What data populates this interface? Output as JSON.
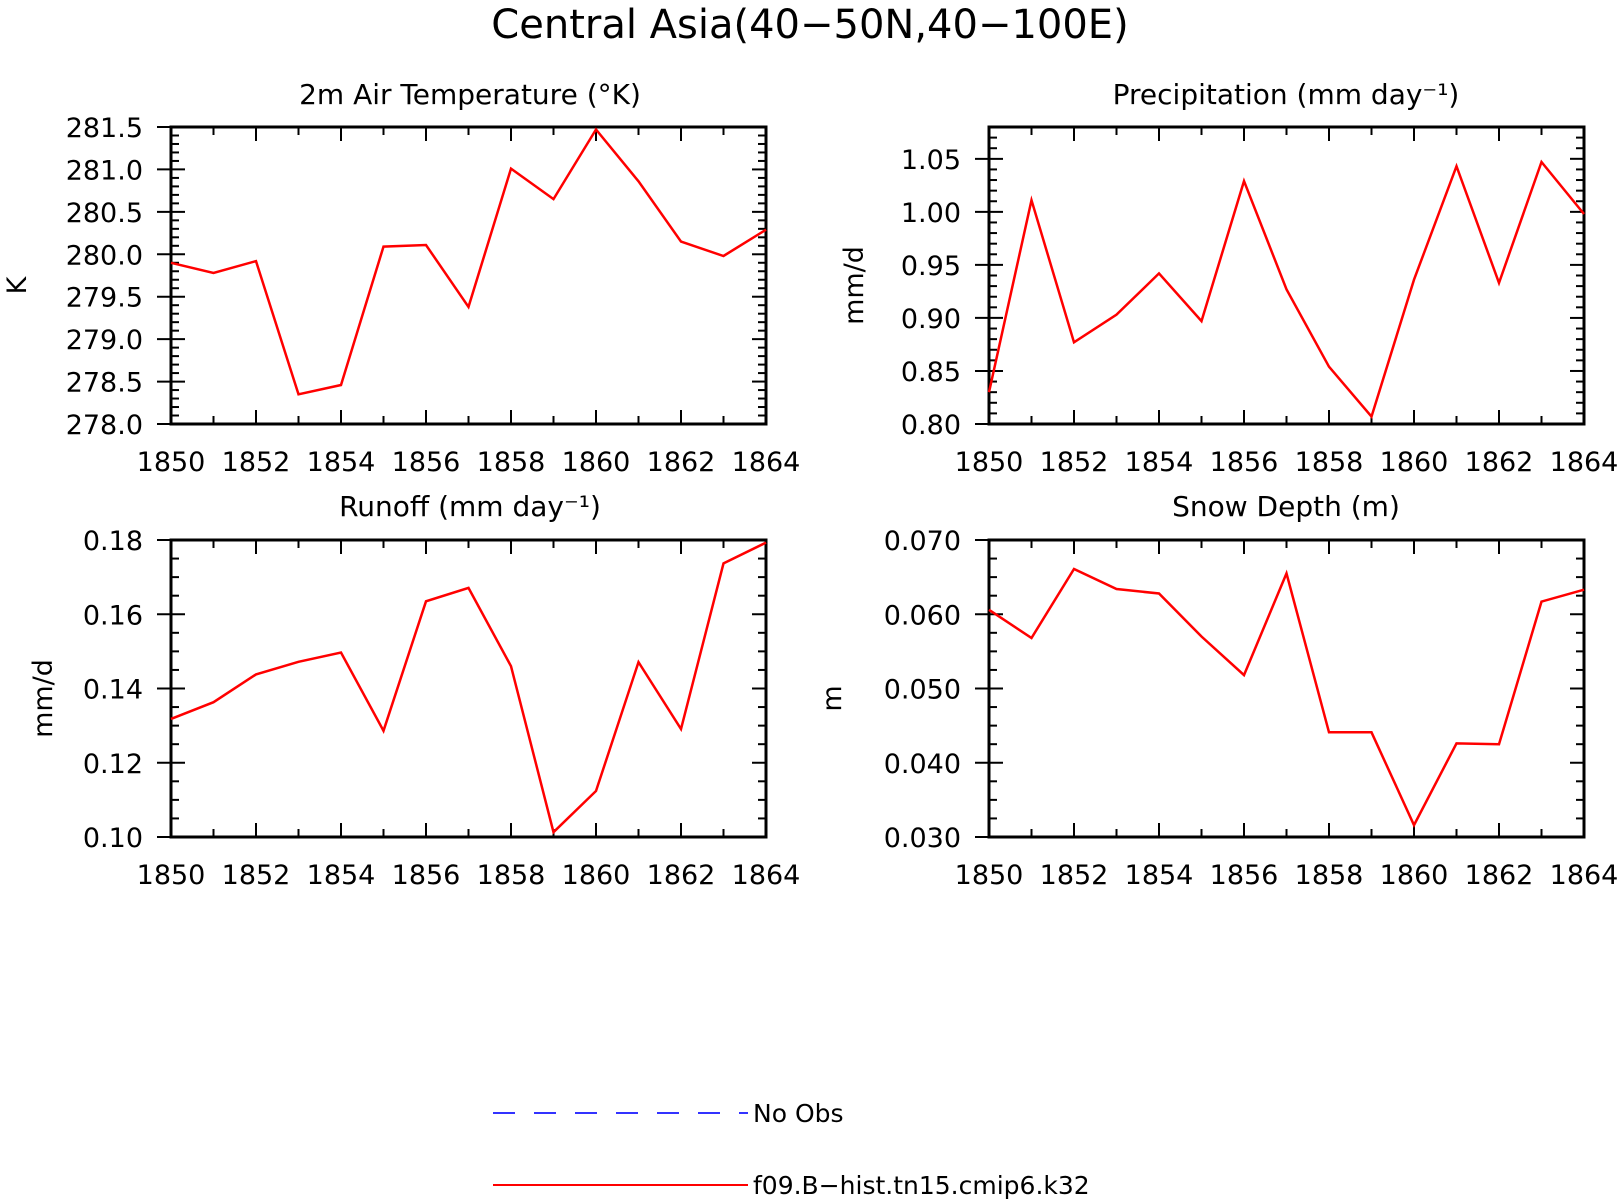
{
  "figure": {
    "title": "Central Asia(40−50N,40−100E)"
  },
  "legend": {
    "items": [
      {
        "label": "No Obs",
        "color": "#3333ff",
        "style": "dashed"
      },
      {
        "label": "f09.B−hist.tn15.cmip6.k32",
        "color": "#ff0000",
        "style": "solid"
      }
    ]
  },
  "chart_data": [
    {
      "type": "line",
      "title": "2m Air Temperature (°K)",
      "xlabel": "",
      "ylabel": "K",
      "xlim": [
        1850,
        1864
      ],
      "ylim": [
        278.0,
        281.5
      ],
      "x_ticks": [
        "1850",
        "1852",
        "1854",
        "1856",
        "1858",
        "1860",
        "1862",
        "1864"
      ],
      "y_ticks": [
        "278.0",
        "278.5",
        "279.0",
        "279.5",
        "280.0",
        "280.5",
        "281.0",
        "281.5"
      ],
      "x": [
        1850,
        1851,
        1852,
        1853,
        1854,
        1855,
        1856,
        1857,
        1858,
        1859,
        1860,
        1861,
        1862,
        1863,
        1864
      ],
      "series": [
        {
          "name": "f09.B−hist.tn15.cmip6.k32",
          "color": "#ff0000",
          "values": [
            279.9,
            279.78,
            279.92,
            278.35,
            278.46,
            280.09,
            280.11,
            279.38,
            281.01,
            280.65,
            281.47,
            280.86,
            280.15,
            279.98,
            280.29
          ]
        }
      ]
    },
    {
      "type": "line",
      "title": "Precipitation (mm day⁻¹)",
      "xlabel": "",
      "ylabel": "mm/d",
      "xlim": [
        1850,
        1864
      ],
      "ylim": [
        0.8,
        1.08
      ],
      "x_ticks": [
        "1850",
        "1852",
        "1854",
        "1856",
        "1858",
        "1860",
        "1862",
        "1864"
      ],
      "y_ticks": [
        "0.80",
        "0.85",
        "0.90",
        "0.95",
        "1.00",
        "1.05"
      ],
      "x": [
        1850,
        1851,
        1852,
        1853,
        1854,
        1855,
        1856,
        1857,
        1858,
        1859,
        1860,
        1861,
        1862,
        1863,
        1864
      ],
      "series": [
        {
          "name": "f09.B−hist.tn15.cmip6.k32",
          "color": "#ff0000",
          "values": [
            0.83,
            1.011,
            0.877,
            0.903,
            0.942,
            0.897,
            1.029,
            0.927,
            0.854,
            0.807,
            0.936,
            1.043,
            0.933,
            1.047,
            0.998
          ]
        }
      ]
    },
    {
      "type": "line",
      "title": "Runoff (mm day⁻¹)",
      "xlabel": "",
      "ylabel": "mm/d",
      "xlim": [
        1850,
        1864
      ],
      "ylim": [
        0.1,
        0.18
      ],
      "x_ticks": [
        "1850",
        "1852",
        "1854",
        "1856",
        "1858",
        "1860",
        "1862",
        "1864"
      ],
      "y_ticks": [
        "0.10",
        "0.12",
        "0.14",
        "0.16",
        "0.18"
      ],
      "x": [
        1850,
        1851,
        1852,
        1853,
        1854,
        1855,
        1856,
        1857,
        1858,
        1859,
        1860,
        1861,
        1862,
        1863,
        1864
      ],
      "series": [
        {
          "name": "f09.B−hist.tn15.cmip6.k32",
          "color": "#ff0000",
          "values": [
            0.1318,
            0.1363,
            0.1438,
            0.1472,
            0.1497,
            0.1286,
            0.1635,
            0.1671,
            0.146,
            0.1013,
            0.1124,
            0.1471,
            0.1291,
            0.1737,
            0.1793
          ]
        }
      ]
    },
    {
      "type": "line",
      "title": "Snow Depth (m)",
      "xlabel": "",
      "ylabel": "m",
      "xlim": [
        1850,
        1864
      ],
      "ylim": [
        0.03,
        0.07
      ],
      "x_ticks": [
        "1850",
        "1852",
        "1854",
        "1856",
        "1858",
        "1860",
        "1862",
        "1864"
      ],
      "y_ticks": [
        "0.030",
        "0.040",
        "0.050",
        "0.060",
        "0.070"
      ],
      "x": [
        1850,
        1851,
        1852,
        1853,
        1854,
        1855,
        1856,
        1857,
        1858,
        1859,
        1860,
        1861,
        1862,
        1863,
        1864
      ],
      "series": [
        {
          "name": "f09.B−hist.tn15.cmip6.k32",
          "color": "#ff0000",
          "values": [
            0.0606,
            0.0568,
            0.0661,
            0.0634,
            0.0628,
            0.057,
            0.0518,
            0.0655,
            0.0441,
            0.0441,
            0.0316,
            0.0426,
            0.0425,
            0.0617,
            0.0633
          ]
        }
      ]
    }
  ]
}
